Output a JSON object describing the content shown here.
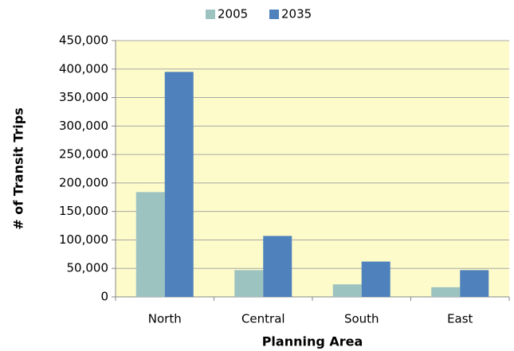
{
  "chart_data": {
    "type": "bar",
    "categories": [
      "North",
      "Central",
      "South",
      "East"
    ],
    "series": [
      {
        "name": "2005",
        "color": "#9dc3c1",
        "values": [
          184000,
          47000,
          22000,
          17000
        ]
      },
      {
        "name": "2035",
        "color": "#4f81bd",
        "values": [
          395000,
          107000,
          62000,
          47000
        ]
      }
    ],
    "x_label": "Planning Area",
    "y_label": "# of Transit Trips",
    "ylim": [
      0,
      450000
    ],
    "yticks": [
      0,
      {
        "value": 50000,
        "label": "50,000"
      },
      {
        "value": 100000,
        "label": "100,000"
      },
      {
        "value": 150000,
        "label": "150,000"
      },
      {
        "value": 200000,
        "label": "200,000"
      },
      {
        "value": 250000,
        "label": "250,000"
      },
      {
        "value": 300000,
        "label": "300,000"
      },
      {
        "value": 350000,
        "label": "350,000"
      },
      {
        "value": 400000,
        "label": "400,000"
      },
      {
        "value": 450000,
        "label": "450,000"
      }
    ],
    "grid": true,
    "legend": "top"
  }
}
